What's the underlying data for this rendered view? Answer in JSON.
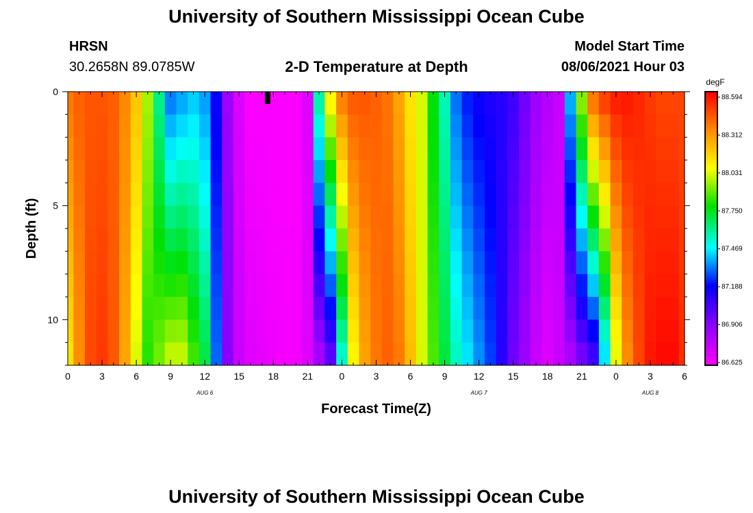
{
  "header": {
    "title_top": "University of Southern Mississippi Ocean Cube",
    "station": "HRSN",
    "coords": "30.2658N  89.0785W",
    "plot_title": "2-D Temperature at Depth",
    "model_label": "Model Start Time",
    "model_time": "08/06/2021 Hour 03",
    "title_bottom": "University of Southern Mississippi Ocean Cube"
  },
  "chart_data": {
    "type": "heatmap",
    "title": "2-D Temperature at Depth",
    "xlabel": "Forecast Time(Z)",
    "ylabel": "Depth (ft)",
    "colorbar_unit": "degF",
    "x_tick_labels": [
      "0",
      "3",
      "6",
      "9",
      "12",
      "15",
      "18",
      "21",
      "0",
      "3",
      "6",
      "9",
      "12",
      "15",
      "18",
      "21",
      "0",
      "3",
      "6"
    ],
    "x_ticks_hours": [
      0,
      3,
      6,
      9,
      12,
      15,
      18,
      21,
      24,
      27,
      30,
      33,
      36,
      39,
      42,
      45,
      48,
      51,
      54
    ],
    "x_range_hours": [
      0,
      54
    ],
    "day_labels": [
      {
        "text": "AUG 6",
        "hour": 12
      },
      {
        "text": "AUG 7",
        "hour": 36
      },
      {
        "text": "AUG 8",
        "hour": 51
      }
    ],
    "y_tick_labels": [
      "0",
      "5",
      "10"
    ],
    "y_ticks": [
      0,
      5,
      10
    ],
    "y_range": [
      0,
      12
    ],
    "y_inverted": true,
    "colorbar_labels": [
      "88.594",
      "88.312",
      "88.031",
      "87.750",
      "87.469",
      "87.188",
      "86.906",
      "86.625"
    ],
    "colorbar_range": [
      86.625,
      88.594
    ],
    "current_time_marker_hour": 17.5,
    "depth_levels": [
      0.5,
      1.5,
      2.5,
      3.5,
      4.5,
      5.5,
      6.5,
      7.5,
      8.5,
      9.5,
      10.5,
      11.5
    ],
    "time_profile": {
      "hours": [
        0,
        1,
        2,
        3,
        4,
        5,
        6,
        7,
        8,
        9,
        10,
        11,
        12,
        13,
        14,
        15,
        16,
        17,
        18,
        19,
        20,
        21,
        22,
        23,
        24,
        25,
        26,
        27,
        28,
        29,
        30,
        31,
        32,
        33,
        34,
        35,
        36,
        37,
        38,
        39,
        40,
        41,
        42,
        43,
        44,
        45,
        46,
        47,
        48,
        49,
        50,
        51,
        52,
        53,
        54
      ],
      "surface": [
        88.36,
        88.4,
        88.42,
        88.42,
        88.4,
        88.32,
        88.18,
        87.95,
        87.6,
        87.3,
        87.35,
        87.4,
        87.35,
        87.15,
        86.85,
        86.7,
        86.63,
        86.63,
        86.63,
        86.63,
        86.63,
        86.7,
        87.6,
        88.1,
        88.36,
        88.42,
        88.42,
        88.4,
        88.36,
        88.25,
        88.1,
        88.0,
        87.75,
        87.55,
        87.3,
        87.2,
        87.15,
        87.12,
        87.1,
        87.05,
        86.95,
        86.85,
        86.8,
        86.75,
        87.4,
        87.95,
        88.4,
        88.5,
        88.55,
        88.55,
        88.52,
        88.48,
        88.45,
        88.45,
        88.45
      ],
      "bottom": [
        88.1,
        88.3,
        88.45,
        88.48,
        88.42,
        88.25,
        88.0,
        87.8,
        87.9,
        88.0,
        88.0,
        87.85,
        87.7,
        87.3,
        86.9,
        86.75,
        86.7,
        86.68,
        86.66,
        86.65,
        86.65,
        86.7,
        86.8,
        86.95,
        87.5,
        88.05,
        88.25,
        88.35,
        88.4,
        88.35,
        88.2,
        88.0,
        87.85,
        87.7,
        87.55,
        87.45,
        87.35,
        87.25,
        87.1,
        86.95,
        86.85,
        86.75,
        86.7,
        86.75,
        86.8,
        86.9,
        87.0,
        87.4,
        88.0,
        88.3,
        88.45,
        88.55,
        88.58,
        88.58,
        88.5
      ]
    }
  }
}
